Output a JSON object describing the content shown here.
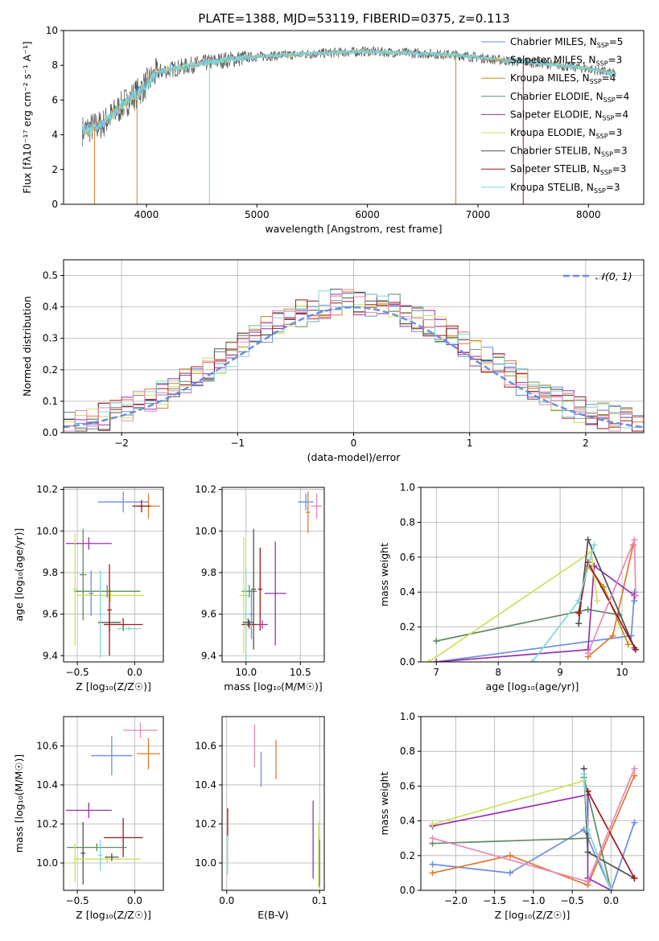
{
  "figure": {
    "title": "PLATE=1388, MJD=53119, FIBERID=0375, z=0.113"
  },
  "colors": {
    "Chabrier MILES": "#6b8ee0",
    "Salpeter MILES": "#e0782d",
    "Kroupa MILES": "#c49018",
    "Chabrier ELODIE": "#5d8a64",
    "Salpeter ELODIE": "#9b2eb0",
    "Kroupa ELODIE": "#cfe05a",
    "Chabrier STELIB": "#505050",
    "Salpeter STELIB": "#a01818",
    "Kroupa STELIB": "#7fd8d8",
    "Pink": "#e887b8"
  },
  "chart_data": [
    {
      "id": "spectrum",
      "type": "line",
      "title": "PLATE=1388, MJD=53119, FIBERID=0375, z=0.113",
      "xlabel": "wavelength [Angstrom, rest frame]",
      "ylabel": "Flux [fλ10⁻¹⁷ erg cm⁻² s⁻¹ A⁻¹]",
      "xlim": [
        3250,
        8500
      ],
      "ylim": [
        0,
        10
      ],
      "xticks": [
        "4000",
        "5000",
        "6000",
        "7000",
        "8000"
      ],
      "yticks": [
        "0",
        "2",
        "4",
        "6",
        "8",
        "10"
      ],
      "legend_position": "upper-right",
      "legend": [
        "Chabrier MILES, N_SSP=5",
        "Salpeter MILES, N_SSP=3",
        "Kroupa MILES, N_SSP=4",
        "Chabrier ELODIE, N_SSP=4",
        "Salpeter ELODIE, N_SSP=4",
        "Kroupa ELODIE, N_SSP=3",
        "Chabrier STELIB, N_SSP=3",
        "Salpeter STELIB, N_SSP=3",
        "Kroupa STELIB, N_SSP=3"
      ],
      "continuum": {
        "x": [
          3400,
          3600,
          3800,
          3950,
          4100,
          4400,
          4700,
          5000,
          5300,
          5600,
          6000,
          6400,
          6800,
          7200,
          7600,
          8000,
          8250
        ],
        "y": [
          4.2,
          4.6,
          5.8,
          6.6,
          7.6,
          8.0,
          8.3,
          8.5,
          8.6,
          8.7,
          8.8,
          8.7,
          8.6,
          8.3,
          8.1,
          7.8,
          7.5
        ]
      },
      "dropouts_x": [
        3530,
        3915,
        4570,
        6800,
        7410
      ]
    },
    {
      "id": "residual-histogram",
      "type": "histogram",
      "xlabel": "(data-model)/error",
      "ylabel": "Normed distribution",
      "xlim": [
        -2.5,
        2.5
      ],
      "ylim": [
        0,
        0.55
      ],
      "xticks": [
        "−2",
        "−1",
        "0",
        "1",
        "2"
      ],
      "yticks": [
        "0.0",
        "0.1",
        "0.2",
        "0.3",
        "0.4",
        "0.5"
      ],
      "grid": true,
      "legend_position": "upper-right",
      "legend": [
        "𝒩(0, 1)"
      ],
      "bin_width": 0.1,
      "reference_curve": "standard normal"
    },
    {
      "id": "age-vs-Z",
      "type": "errorbar",
      "xlabel": "Z [log₁₀(Z/Z☉)]",
      "ylabel": "age  [log₁₀(age/yr)]",
      "xlim": [
        -0.62,
        0.25
      ],
      "ylim": [
        9.37,
        10.21
      ],
      "xticks": [
        "−0.5",
        "0.0"
      ],
      "yticks": [
        "9.4",
        "9.6",
        "9.8",
        "10.0",
        "10.2"
      ],
      "grid": true,
      "points": [
        {
          "s": "Chabrier MILES",
          "x": -0.1,
          "y": 10.14,
          "xerr": 0.22,
          "yerr": 0.05
        },
        {
          "s": "Salpeter MILES",
          "x": 0.12,
          "y": 10.12,
          "xerr": 0.1,
          "yerr": 0.06
        },
        {
          "s": "Salpeter STELIB",
          "x": 0.06,
          "y": 10.12,
          "xerr": 0.08,
          "yerr": 0.03
        },
        {
          "s": "Chabrier ELODIE",
          "x": -0.45,
          "y": 9.79,
          "xerr": 0.03,
          "yerr": 0.22
        },
        {
          "s": "Salpeter ELODIE",
          "x": -0.4,
          "y": 9.94,
          "xerr": 0.2,
          "yerr": 0.03
        },
        {
          "s": "Kroupa ELODIE",
          "x": -0.21,
          "y": 9.69,
          "xerr": 0.29,
          "yerr": 0.03
        },
        {
          "s": "Chabrier ELODIE",
          "x": -0.24,
          "y": 9.71,
          "xerr": 0.29,
          "yerr": 0.03
        },
        {
          "s": "Chabrier STELIB",
          "x": -0.22,
          "y": 9.56,
          "xerr": 0.1,
          "yerr": 0.05
        },
        {
          "s": "Salpeter STELIB",
          "x": -0.1,
          "y": 9.55,
          "xerr": 0.17,
          "yerr": 0.03
        },
        {
          "s": "Salpeter STELIB",
          "x": -0.22,
          "y": 9.62,
          "xerr": 0.02,
          "yerr": 0.22
        },
        {
          "s": "Kroupa STELIB",
          "x": -0.3,
          "y": 9.6,
          "xerr": 0.02,
          "yerr": 0.21
        },
        {
          "s": "Chabrier MILES",
          "x": -0.38,
          "y": 9.7,
          "xerr": 0.02,
          "yerr": 0.11
        },
        {
          "s": "Kroupa ELODIE",
          "x": -0.52,
          "y": 9.72,
          "xerr": 0.02,
          "yerr": 0.27
        },
        {
          "s": "Kroupa STELIB",
          "x": -0.05,
          "y": 9.53,
          "xerr": 0.1,
          "yerr": 0.01
        }
      ]
    },
    {
      "id": "age-vs-mass",
      "type": "errorbar",
      "xlabel": "mass [log₁₀(M/M☉)]",
      "xlim": [
        9.78,
        10.72
      ],
      "ylim": [
        9.37,
        10.21
      ],
      "xticks": [
        "10.0",
        "10.5"
      ],
      "yticks": [
        "9.4",
        "9.6",
        "9.8",
        "10.0",
        "10.2"
      ],
      "grid": true,
      "points": [
        {
          "s": "Chabrier MILES",
          "x": 10.55,
          "y": 10.14,
          "xerr": 0.07,
          "yerr": 0.04
        },
        {
          "s": "Salpeter MILES",
          "x": 10.57,
          "y": 10.09,
          "xerr": 0.02,
          "yerr": 0.1
        },
        {
          "s": "Pink",
          "x": 10.65,
          "y": 10.12,
          "xerr": 0.05,
          "yerr": 0.06
        },
        {
          "s": "Salpeter ELODIE",
          "x": 10.27,
          "y": 9.7,
          "xerr": 0.1,
          "yerr": 0.25
        },
        {
          "s": "Salpeter STELIB",
          "x": 10.13,
          "y": 9.72,
          "xerr": 0.02,
          "yerr": 0.2
        },
        {
          "s": "Chabrier ELODIE",
          "x": 10.03,
          "y": 9.71,
          "xerr": 0.07,
          "yerr": 0.03
        },
        {
          "s": "Kroupa ELODIE",
          "x": 9.98,
          "y": 9.69,
          "xerr": 0.04,
          "yerr": 0.28
        },
        {
          "s": "Chabrier STELIB",
          "x": 10.07,
          "y": 9.72,
          "xerr": 0.02,
          "yerr": 0.29
        },
        {
          "s": "Salpeter STELIB",
          "x": 10.03,
          "y": 9.55,
          "xerr": 0.07,
          "yerr": 0.02
        },
        {
          "s": "Kroupa STELIB",
          "x": 10.0,
          "y": 9.6,
          "xerr": 0.02,
          "yerr": 0.22
        },
        {
          "s": "Chabrier STELIB",
          "x": 10.02,
          "y": 9.56,
          "xerr": 0.05,
          "yerr": 0.02
        },
        {
          "s": "Chabrier MILES",
          "x": 10.05,
          "y": 9.6,
          "xerr": 0.02,
          "yerr": 0.12
        },
        {
          "s": "Salpeter ELODIE",
          "x": 10.15,
          "y": 9.55,
          "xerr": 0.05,
          "yerr": 0.02
        }
      ]
    },
    {
      "id": "weight-vs-age",
      "type": "line",
      "xlabel": "age  [log₁₀(age/yr)]",
      "ylabel": "mass weight",
      "xlim": [
        6.75,
        10.35
      ],
      "ylim": [
        0,
        1
      ],
      "xticks": [
        "7",
        "8",
        "9",
        "10"
      ],
      "yticks": [
        "0.0",
        "0.2",
        "0.4",
        "0.6",
        "0.8",
        "1.0"
      ],
      "grid": true,
      "series": [
        {
          "s": "Chabrier MILES",
          "x": [
            7.0,
            10.15,
            10.2,
            10.2
          ],
          "y": [
            0.0,
            0.15,
            0.4,
            0.35
          ]
        },
        {
          "s": "Salpeter MILES",
          "x": [
            9.45,
            9.85,
            10.18
          ],
          "y": [
            0.03,
            0.15,
            0.67
          ]
        },
        {
          "s": "Kroupa MILES",
          "x": [
            9.45,
            9.7,
            10.1
          ],
          "y": [
            0.55,
            0.43,
            0.1
          ]
        },
        {
          "s": "Chabrier ELODIE",
          "x": [
            7.0,
            9.45,
            9.95
          ],
          "y": [
            0.12,
            0.3,
            0.27
          ]
        },
        {
          "s": "Salpeter ELODIE",
          "x": [
            7.0,
            9.45,
            9.55,
            10.2
          ],
          "y": [
            0.0,
            0.07,
            0.55,
            0.38
          ]
        },
        {
          "s": "Kroupa ELODIE",
          "x": [
            6.88,
            9.5,
            9.6
          ],
          "y": [
            0.0,
            0.63,
            0.35
          ]
        },
        {
          "s": "Chabrier STELIB",
          "x": [
            9.3,
            9.45,
            10.2
          ],
          "y": [
            0.22,
            0.7,
            0.08
          ]
        },
        {
          "s": "Salpeter STELIB",
          "x": [
            9.3,
            9.45,
            10.22
          ],
          "y": [
            0.28,
            0.57,
            0.07
          ]
        },
        {
          "s": "Kroupa STELIB",
          "x": [
            8.55,
            9.3,
            9.55
          ],
          "y": [
            0.0,
            0.35,
            0.67
          ]
        },
        {
          "s": "Pink",
          "x": [
            9.45,
            10.2,
            10.22
          ],
          "y": [
            0.05,
            0.7,
            0.38
          ]
        }
      ]
    },
    {
      "id": "mass-vs-Z",
      "type": "errorbar",
      "xlabel": "Z [log₁₀(Z/Z☉)]",
      "ylabel": "mass [log₁₀(M/M☉)]",
      "xlim": [
        -0.62,
        0.25
      ],
      "ylim": [
        9.86,
        10.75
      ],
      "xticks": [
        "−0.5",
        "0.0"
      ],
      "yticks": [
        "10.0",
        "10.2",
        "10.4",
        "10.6"
      ],
      "grid": true,
      "points": [
        {
          "s": "Pink",
          "x": 0.05,
          "y": 10.68,
          "xerr": 0.15,
          "yerr": 0.04
        },
        {
          "s": "Salpeter MILES",
          "x": 0.12,
          "y": 10.56,
          "xerr": 0.1,
          "yerr": 0.08
        },
        {
          "s": "Chabrier MILES",
          "x": -0.2,
          "y": 10.55,
          "xerr": 0.18,
          "yerr": 0.1
        },
        {
          "s": "Salpeter ELODIE",
          "x": -0.4,
          "y": 10.27,
          "xerr": 0.2,
          "yerr": 0.04
        },
        {
          "s": "Chabrier STELIB",
          "x": -0.45,
          "y": 10.05,
          "xerr": 0.02,
          "yerr": 0.16
        },
        {
          "s": "Salpeter STELIB",
          "x": -0.1,
          "y": 10.13,
          "xerr": 0.17,
          "yerr": 0.1
        },
        {
          "s": "Chabrier ELODIE",
          "x": -0.33,
          "y": 10.08,
          "xerr": 0.26,
          "yerr": 0.02
        },
        {
          "s": "Kroupa ELODIE",
          "x": -0.24,
          "y": 10.02,
          "xerr": 0.29,
          "yerr": 0.02
        },
        {
          "s": "Kroupa STELIB",
          "x": -0.3,
          "y": 10.04,
          "xerr": 0.02,
          "yerr": 0.08
        },
        {
          "s": "Chabrier STELIB",
          "x": -0.2,
          "y": 10.03,
          "xerr": 0.06,
          "yerr": 0.02
        },
        {
          "s": "Kroupa ELODIE",
          "x": -0.52,
          "y": 10.0,
          "xerr": 0.02,
          "yerr": 0.1
        }
      ]
    },
    {
      "id": "mass-vs-EBV",
      "type": "errorbar",
      "xlabel": "E(B-V)",
      "xlim": [
        -0.005,
        0.105
      ],
      "ylim": [
        9.86,
        10.75
      ],
      "xticks": [
        "0.0",
        "0.1"
      ],
      "yticks": [
        "10.0",
        "10.2",
        "10.4",
        "10.6"
      ],
      "grid": true,
      "points": [
        {
          "s": "Pink",
          "x": 0.03,
          "y": 10.6,
          "xerr": 0.0,
          "yerr": 0.11
        },
        {
          "s": "Salpeter MILES",
          "x": 0.053,
          "y": 10.53,
          "xerr": 0.0,
          "yerr": 0.1
        },
        {
          "s": "Chabrier MILES",
          "x": 0.037,
          "y": 10.48,
          "xerr": 0.0,
          "yerr": 0.09
        },
        {
          "s": "Salpeter STELIB",
          "x": 0.001,
          "y": 10.21,
          "xerr": 0.0,
          "yerr": 0.07
        },
        {
          "s": "Kroupa STELIB",
          "x": 0.001,
          "y": 10.04,
          "xerr": 0.0,
          "yerr": 0.1
        },
        {
          "s": "Salpeter ELODIE",
          "x": 0.093,
          "y": 10.12,
          "xerr": 0.0,
          "yerr": 0.2
        },
        {
          "s": "Kroupa ELODIE",
          "x": 0.099,
          "y": 10.04,
          "xerr": 0.0,
          "yerr": 0.17
        },
        {
          "s": "Chabrier ELODIE",
          "x": 0.1,
          "y": 10.0,
          "xerr": 0.0,
          "yerr": 0.12
        }
      ]
    },
    {
      "id": "weight-vs-Z",
      "type": "line",
      "xlabel": "Z [log₁₀(Z/Z☉)]",
      "ylabel": "mass weight",
      "xlim": [
        -2.45,
        0.42
      ],
      "ylim": [
        0,
        1
      ],
      "xticks": [
        "−2.0",
        "−1.5",
        "−1.0",
        "−0.5",
        "0.0"
      ],
      "yticks": [
        "0.0",
        "0.2",
        "0.4",
        "0.6",
        "0.8",
        "1.0"
      ],
      "grid": true,
      "series": [
        {
          "s": "Chabrier MILES",
          "x": [
            -2.3,
            -1.3,
            -0.35,
            0.0,
            0.3
          ],
          "y": [
            0.15,
            0.1,
            0.35,
            0.0,
            0.39
          ]
        },
        {
          "s": "Salpeter MILES",
          "x": [
            -2.3,
            -1.3,
            -0.3,
            0.3
          ],
          "y": [
            0.1,
            0.2,
            0.03,
            0.66
          ]
        },
        {
          "s": "Chabrier ELODIE",
          "x": [
            -2.3,
            -0.3,
            -0.35,
            0.0
          ],
          "y": [
            0.27,
            0.3,
            0.65,
            0.0
          ]
        },
        {
          "s": "Salpeter ELODIE",
          "x": [
            -2.3,
            -0.3,
            -0.3,
            0.0
          ],
          "y": [
            0.37,
            0.55,
            0.07,
            0.0
          ]
        },
        {
          "s": "Kroupa ELODIE",
          "x": [
            -2.3,
            -0.35,
            -0.3,
            0.0
          ],
          "y": [
            0.38,
            0.63,
            0.35,
            0.0
          ]
        },
        {
          "s": "Chabrier STELIB",
          "x": [
            -0.35,
            -0.3,
            0.3
          ],
          "y": [
            0.7,
            0.22,
            0.07
          ]
        },
        {
          "s": "Salpeter STELIB",
          "x": [
            -0.3,
            -0.3,
            0.3
          ],
          "y": [
            0.57,
            0.57,
            0.07
          ]
        },
        {
          "s": "Kroupa STELIB",
          "x": [
            -0.35,
            -0.3,
            0.0
          ],
          "y": [
            0.67,
            0.35,
            0.0
          ]
        },
        {
          "s": "Pink",
          "x": [
            -2.3,
            -0.3,
            0.3
          ],
          "y": [
            0.3,
            0.05,
            0.7
          ]
        }
      ]
    }
  ]
}
